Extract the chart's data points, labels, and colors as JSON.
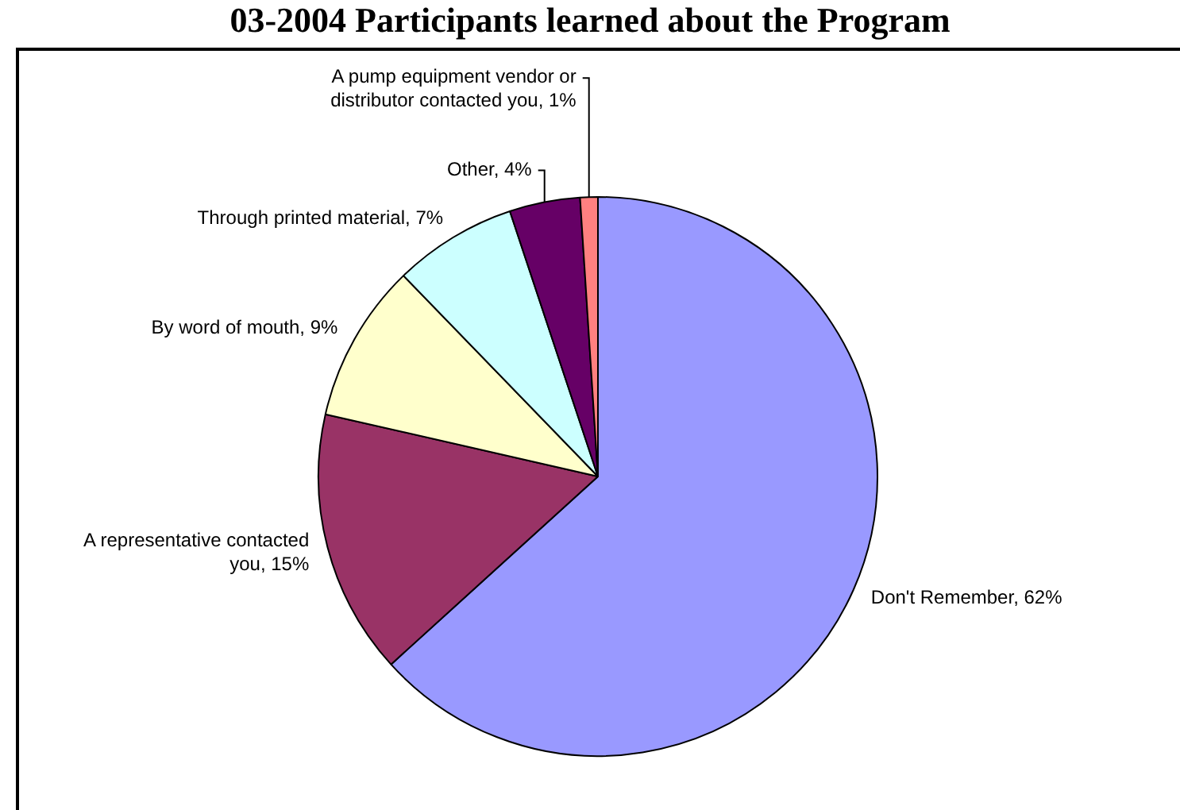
{
  "chart_data": {
    "type": "pie",
    "title": "03-2004 Participants learned about the Program",
    "categories": [
      "Don't Remember",
      "A representative contacted you",
      "By word of mouth",
      "Through printed material",
      "Other",
      "A pump equipment vendor or distributor contacted you"
    ],
    "values": [
      62,
      15,
      9,
      7,
      4,
      1
    ],
    "value_labels": [
      "62%",
      "15%",
      "9%",
      "7%",
      "4%",
      "1%"
    ],
    "colors": [
      "#9999ff",
      "#993366",
      "#ffffcc",
      "#ccffff",
      "#660066",
      "#ff8080"
    ],
    "legend": false
  }
}
